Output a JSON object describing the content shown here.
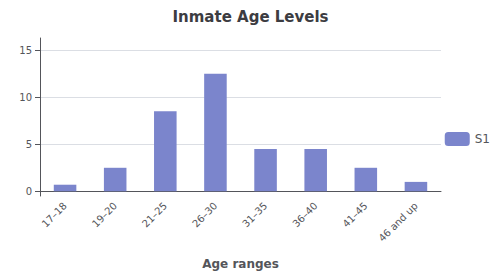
{
  "chart_data": {
    "type": "bar",
    "title": "Inmate Age Levels",
    "xlabel": "Age ranges",
    "categories": [
      "17–18",
      "19–20",
      "21–25",
      "26–30",
      "31–35",
      "36–40",
      "41–45",
      "46 and up"
    ],
    "series": [
      {
        "name": "S1",
        "color": "#7b85cc",
        "values": [
          0.7,
          2.5,
          8.5,
          12.5,
          4.5,
          4.5,
          2.5,
          1.0
        ]
      }
    ],
    "ylim": [
      -0.5,
      16.3
    ],
    "yticks": [
      0,
      5,
      10,
      15
    ],
    "grid": true,
    "legend": "right"
  }
}
